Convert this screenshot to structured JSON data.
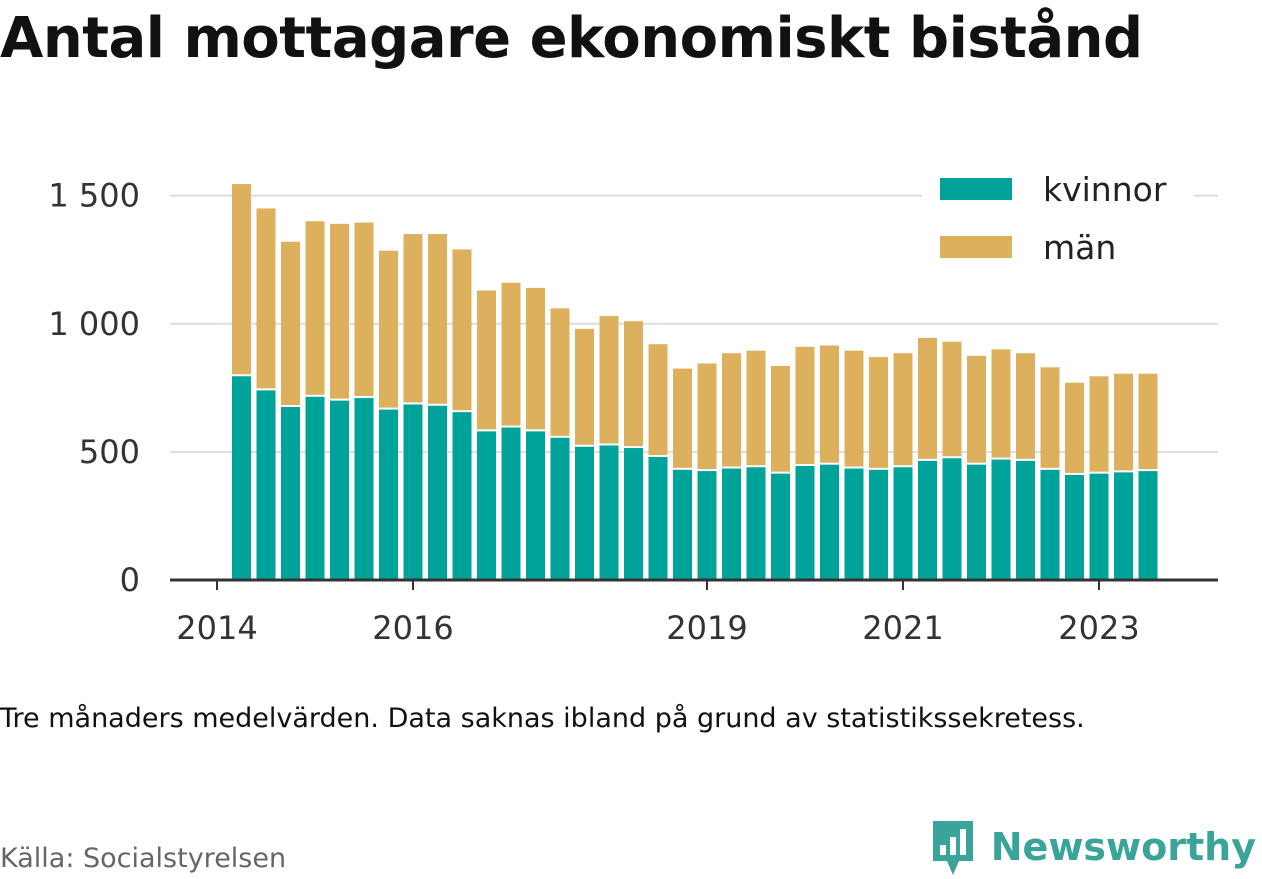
{
  "title": "Antal mottagare ekonomiskt bistånd",
  "note": "Tre månaders medelvärden. Data saknas ibland på grund av statistikssekretess.",
  "source": "Källa: Socialstyrelsen",
  "brand": {
    "name": "Newsworthy",
    "logo_icon": "newsworthy-chart-logo-icon"
  },
  "colors": {
    "kvinnor": "#00a39a",
    "man": "#dcb05c",
    "grid": "#dddddd",
    "axis": "#333333",
    "brand": "#3aa39a"
  },
  "chart_data": {
    "type": "bar",
    "stacked": true,
    "x_start": 2014.25,
    "x_step": 0.25,
    "x_ticks": [
      2014,
      2016,
      2019,
      2021,
      2023
    ],
    "xlim": [
      2014,
      2024
    ],
    "ylim": [
      0,
      1600
    ],
    "y_ticks": [
      0,
      500,
      1000,
      1500
    ],
    "y_tick_labels": [
      "0",
      "500",
      "1 000",
      "1 500"
    ],
    "grid": "horizontal",
    "legend_position": "top-right",
    "series": [
      {
        "name": "kvinnor",
        "values": [
          795,
          740,
          675,
          715,
          700,
          710,
          665,
          685,
          680,
          655,
          580,
          595,
          580,
          555,
          520,
          525,
          515,
          480,
          430,
          425,
          435,
          440,
          415,
          445,
          450,
          435,
          430,
          440,
          465,
          475,
          450,
          470,
          465,
          430,
          410,
          415,
          420,
          425
        ]
      },
      {
        "name": "män",
        "values": [
          750,
          710,
          645,
          685,
          690,
          685,
          620,
          665,
          670,
          635,
          550,
          565,
          560,
          505,
          460,
          505,
          495,
          440,
          395,
          420,
          450,
          455,
          420,
          465,
          465,
          460,
          440,
          445,
          480,
          455,
          425,
          430,
          420,
          400,
          360,
          380,
          385,
          380
        ]
      }
    ]
  }
}
